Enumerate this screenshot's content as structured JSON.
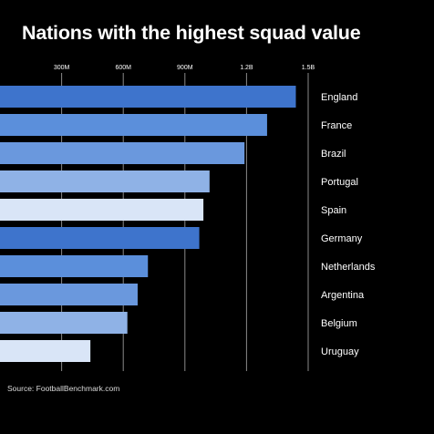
{
  "title": "Nations with the highest squad value",
  "source": "Source: FootballBenchmark.com",
  "chart_data": {
    "type": "bar",
    "orientation": "horizontal",
    "title": "Nations with the highest squad value",
    "categories": [
      "England",
      "France",
      "Brazil",
      "Portugal",
      "Spain",
      "Germany",
      "Netherlands",
      "Argentina",
      "Belgium",
      "Uruguay"
    ],
    "values": [
      1440,
      1300,
      1190,
      1020,
      990,
      970,
      720,
      670,
      620,
      440
    ],
    "x_ticks": [
      {
        "value": 300,
        "label": "300M"
      },
      {
        "value": 600,
        "label": "600M"
      },
      {
        "value": 900,
        "label": "900M"
      },
      {
        "value": 1200,
        "label": "1.2B"
      },
      {
        "value": 1500,
        "label": "1.5B"
      }
    ],
    "xlim": [
      0,
      1500
    ],
    "grid": true,
    "colors": [
      "#3e74cc",
      "#5b8fdb",
      "#6a98dd",
      "#8fb2e6",
      "#d9e5f7",
      "#3e74cc",
      "#5b8fdb",
      "#6a98dd",
      "#8fb2e6",
      "#d9e5f7"
    ]
  }
}
